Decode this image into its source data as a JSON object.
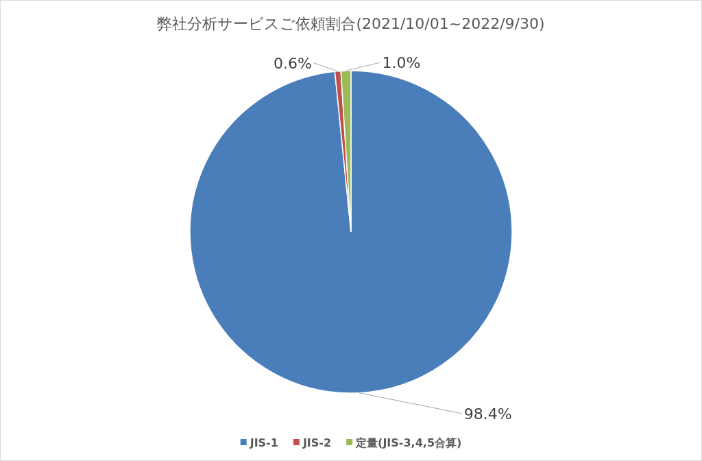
{
  "chart_data": {
    "type": "pie",
    "title": "弊社分析サービスご依頼割合(2021/10/01~2022/9/30)",
    "categories": [
      "JIS-1",
      "JIS-2",
      "定量(JIS-3,4,5合算)"
    ],
    "values": [
      98.4,
      0.6,
      1.0
    ],
    "colors": [
      "#4a7ebb",
      "#c0504d",
      "#9bbb59"
    ],
    "value_labels": [
      "98.4%",
      "0.6%",
      "1.0%"
    ],
    "legend": "bottom"
  }
}
